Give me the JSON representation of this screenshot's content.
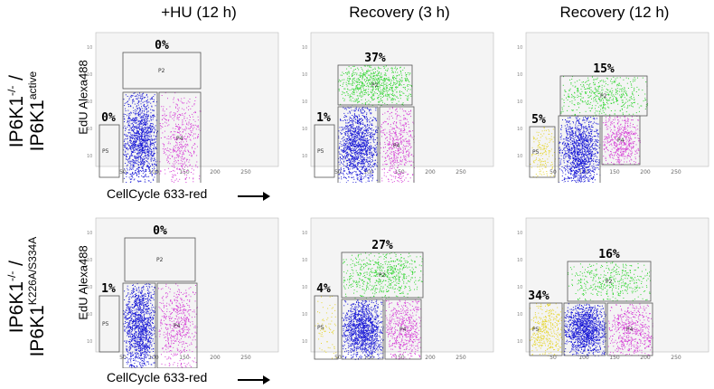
{
  "column_titles": [
    "+HU (12 h)",
    "Recovery (3 h)",
    "Recovery (12 h)"
  ],
  "rows": [
    {
      "label_main": "IP6K1",
      "label_sup1": "-/-",
      "label_sep": " /",
      "label_line2": "IP6K1",
      "label_sup2": "active",
      "y_axis_label": "EdU  Alexa488",
      "x_axis_label": "CellCycle 633-red",
      "panels": [
        {
          "p2": "0%",
          "p5": "0%"
        },
        {
          "p2": "37%",
          "p5": "1%"
        },
        {
          "p2": "15%",
          "p5": "5%"
        }
      ]
    },
    {
      "label_main": "IP6K1",
      "label_sup1": "-/-",
      "label_sep": " /",
      "label_line2": "IP6K1",
      "label_sup2": "K226A/S334A",
      "y_axis_label": "EdU  Alexa488",
      "x_axis_label": "CellCycle 633-red",
      "panels": [
        {
          "p2": "0%",
          "p5": "1%"
        },
        {
          "p2": "27%",
          "p5": "4%"
        },
        {
          "p2": "16%",
          "p5": "34%"
        }
      ]
    }
  ],
  "gate_labels": {
    "p2": "P2",
    "p4": "P4",
    "p5": "P5"
  },
  "x_ticks": [
    "50",
    "100",
    "150",
    "200",
    "250"
  ],
  "colors": {
    "g1": "#1a1ad6",
    "g2m": "#d63fd6",
    "s": "#33d633",
    "subg1": "#e6d633"
  }
}
